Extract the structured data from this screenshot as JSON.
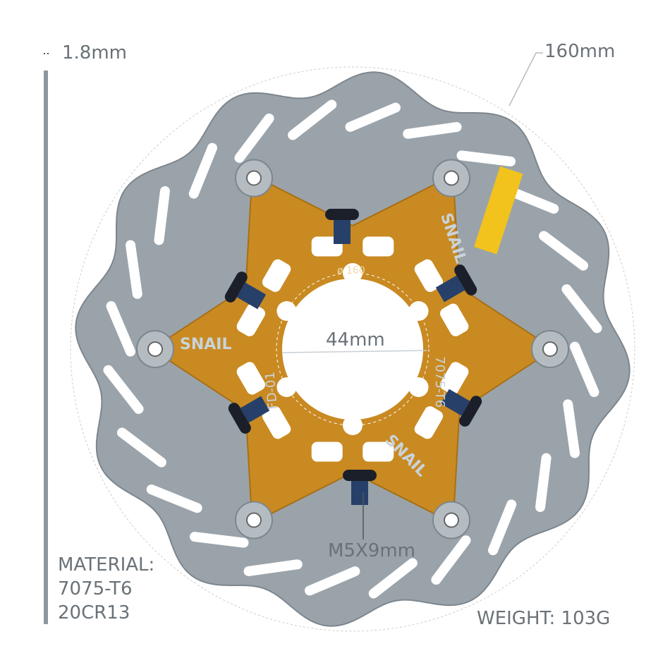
{
  "labels": {
    "thickness": "1.8mm",
    "diameter": "160mm",
    "center_hole": "44mm",
    "bolt": "M5X9mm",
    "material_title": "MATERIAL:",
    "material_1": "7075-T6",
    "material_2": "20CR13",
    "weight": "WEIGHT: 103G"
  },
  "engravings": {
    "brand": "SNAIL",
    "size": "ø 160",
    "model": "FD-01",
    "alloy": "7075-T6"
  },
  "colors": {
    "rotor": "#9aa3aa",
    "spider": "#c98a22",
    "bolt": "#1a1f2a",
    "label": "#6a7278"
  }
}
